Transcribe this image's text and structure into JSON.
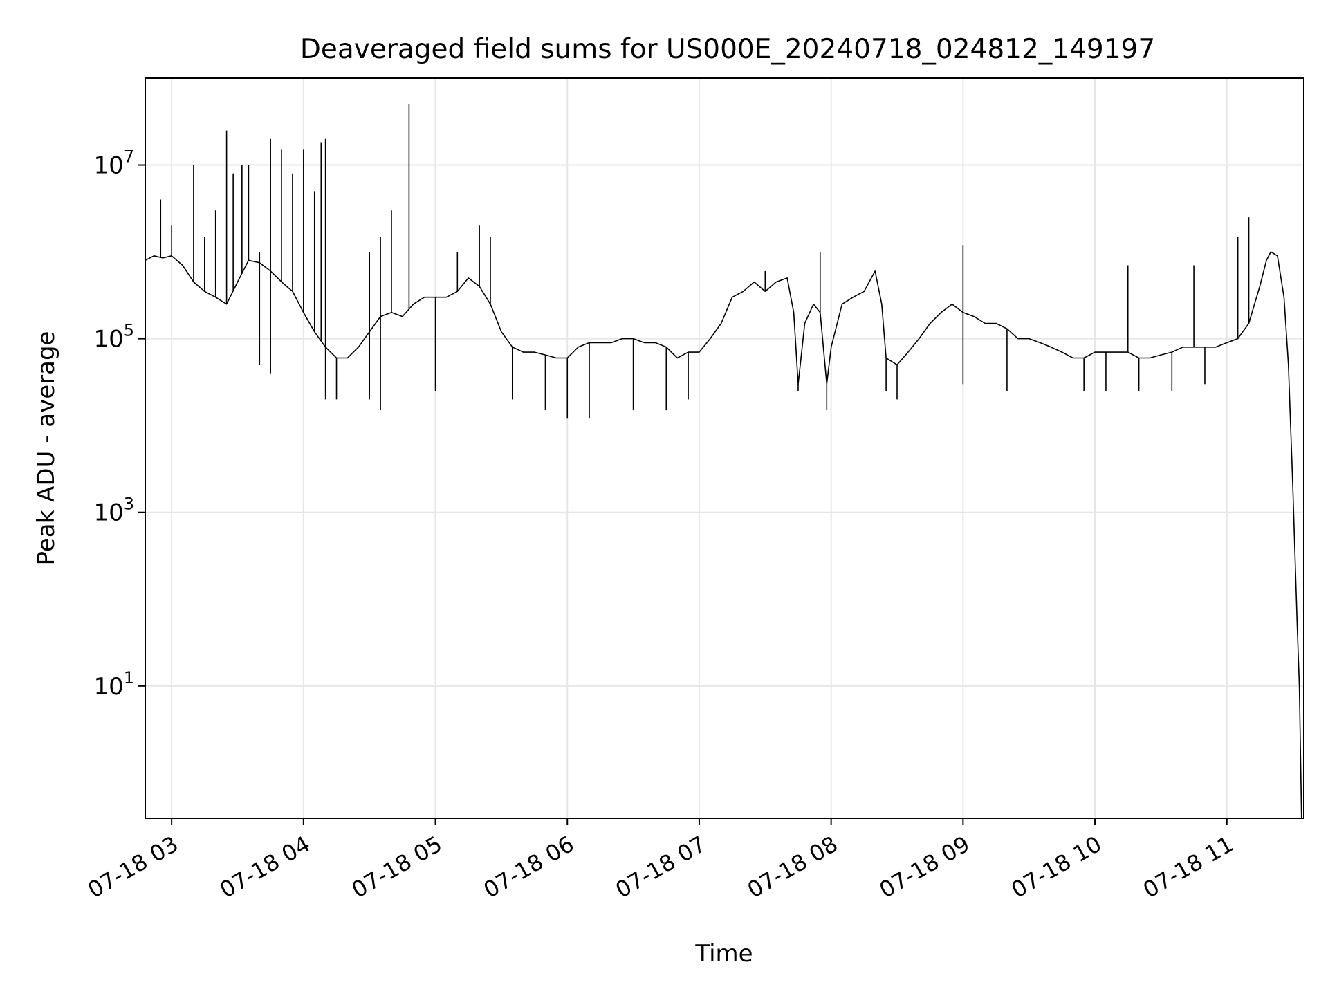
{
  "chart_data": {
    "type": "line",
    "title": "Deaveraged field sums for US000E_20240718_024812_149197",
    "xlabel": "Time",
    "ylabel": "Peak ADU - average",
    "x_scale": "time",
    "y_scale": "log",
    "xlim": [
      "07-18 02:48",
      "07-18 11:35"
    ],
    "ylim": [
      0.3,
      100000000
    ],
    "grid": true,
    "line_color": "#000000",
    "grid_color": "#e6e6e6",
    "x_ticks": [
      {
        "label": "07-18 03",
        "value": "07-18 03:00"
      },
      {
        "label": "07-18 04",
        "value": "07-18 04:00"
      },
      {
        "label": "07-18 05",
        "value": "07-18 05:00"
      },
      {
        "label": "07-18 06",
        "value": "07-18 06:00"
      },
      {
        "label": "07-18 07",
        "value": "07-18 07:00"
      },
      {
        "label": "07-18 08",
        "value": "07-18 08:00"
      },
      {
        "label": "07-18 09",
        "value": "07-18 09:00"
      },
      {
        "label": "07-18 10",
        "value": "07-18 10:00"
      },
      {
        "label": "07-18 11",
        "value": "07-18 11:00"
      }
    ],
    "y_ticks": [
      {
        "base": "10",
        "exp": "1",
        "value": 10
      },
      {
        "base": "10",
        "exp": "3",
        "value": 1000
      },
      {
        "base": "10",
        "exp": "5",
        "value": 100000
      },
      {
        "base": "10",
        "exp": "7",
        "value": 10000000
      }
    ],
    "series": [
      {
        "points": [
          [
            "07-18 02:48",
            800000
          ],
          [
            "07-18 02:52",
            900000
          ],
          [
            "07-18 02:56",
            850000
          ],
          [
            "07-18 03:00",
            900000
          ],
          [
            "07-18 03:05",
            700000
          ],
          [
            "07-18 03:10",
            450000
          ],
          [
            "07-18 03:15",
            350000
          ],
          [
            "07-18 03:20",
            300000
          ],
          [
            "07-18 03:25",
            250000
          ],
          [
            "07-18 03:30",
            450000
          ],
          [
            "07-18 03:35",
            800000
          ],
          [
            "07-18 03:40",
            750000
          ],
          [
            "07-18 03:45",
            600000
          ],
          [
            "07-18 03:50",
            450000
          ],
          [
            "07-18 03:55",
            350000
          ],
          [
            "07-18 04:00",
            200000
          ],
          [
            "07-18 04:05",
            120000
          ],
          [
            "07-18 04:10",
            80000
          ],
          [
            "07-18 04:15",
            60000
          ],
          [
            "07-18 04:20",
            60000
          ],
          [
            "07-18 04:25",
            80000
          ],
          [
            "07-18 04:30",
            120000
          ],
          [
            "07-18 04:35",
            180000
          ],
          [
            "07-18 04:40",
            200000
          ],
          [
            "07-18 04:45",
            180000
          ],
          [
            "07-18 04:50",
            250000
          ],
          [
            "07-18 04:55",
            300000
          ],
          [
            "07-18 05:00",
            300000
          ],
          [
            "07-18 05:05",
            300000
          ],
          [
            "07-18 05:10",
            350000
          ],
          [
            "07-18 05:15",
            500000
          ],
          [
            "07-18 05:20",
            400000
          ],
          [
            "07-18 05:25",
            250000
          ],
          [
            "07-18 05:30",
            120000
          ],
          [
            "07-18 05:35",
            80000
          ],
          [
            "07-18 05:40",
            70000
          ],
          [
            "07-18 05:45",
            70000
          ],
          [
            "07-18 05:50",
            65000
          ],
          [
            "07-18 05:55",
            60000
          ],
          [
            "07-18 06:00",
            60000
          ],
          [
            "07-18 06:05",
            80000
          ],
          [
            "07-18 06:10",
            90000
          ],
          [
            "07-18 06:15",
            90000
          ],
          [
            "07-18 06:20",
            90000
          ],
          [
            "07-18 06:25",
            100000
          ],
          [
            "07-18 06:30",
            100000
          ],
          [
            "07-18 06:35",
            90000
          ],
          [
            "07-18 06:40",
            90000
          ],
          [
            "07-18 06:45",
            80000
          ],
          [
            "07-18 06:50",
            60000
          ],
          [
            "07-18 06:55",
            70000
          ],
          [
            "07-18 07:00",
            70000
          ],
          [
            "07-18 07:05",
            100000
          ],
          [
            "07-18 07:10",
            150000
          ],
          [
            "07-18 07:15",
            300000
          ],
          [
            "07-18 07:20",
            350000
          ],
          [
            "07-18 07:25",
            450000
          ],
          [
            "07-18 07:30",
            350000
          ],
          [
            "07-18 07:35",
            450000
          ],
          [
            "07-18 07:40",
            500000
          ],
          [
            "07-18 07:43",
            200000
          ],
          [
            "07-18 07:45",
            30000
          ],
          [
            "07-18 07:48",
            150000
          ],
          [
            "07-18 07:52",
            250000
          ],
          [
            "07-18 07:55",
            200000
          ],
          [
            "07-18 07:58",
            30000
          ],
          [
            "07-18 08:00",
            80000
          ],
          [
            "07-18 08:05",
            250000
          ],
          [
            "07-18 08:10",
            300000
          ],
          [
            "07-18 08:15",
            350000
          ],
          [
            "07-18 08:20",
            600000
          ],
          [
            "07-18 08:23",
            250000
          ],
          [
            "07-18 08:25",
            60000
          ],
          [
            "07-18 08:30",
            50000
          ],
          [
            "07-18 08:35",
            70000
          ],
          [
            "07-18 08:40",
            100000
          ],
          [
            "07-18 08:45",
            150000
          ],
          [
            "07-18 08:50",
            200000
          ],
          [
            "07-18 08:55",
            250000
          ],
          [
            "07-18 09:00",
            200000
          ],
          [
            "07-18 09:05",
            180000
          ],
          [
            "07-18 09:10",
            150000
          ],
          [
            "07-18 09:15",
            150000
          ],
          [
            "07-18 09:20",
            130000
          ],
          [
            "07-18 09:25",
            100000
          ],
          [
            "07-18 09:30",
            100000
          ],
          [
            "07-18 09:35",
            90000
          ],
          [
            "07-18 09:40",
            80000
          ],
          [
            "07-18 09:45",
            70000
          ],
          [
            "07-18 09:50",
            60000
          ],
          [
            "07-18 09:55",
            60000
          ],
          [
            "07-18 10:00",
            70000
          ],
          [
            "07-18 10:05",
            70000
          ],
          [
            "07-18 10:10",
            70000
          ],
          [
            "07-18 10:15",
            70000
          ],
          [
            "07-18 10:20",
            60000
          ],
          [
            "07-18 10:25",
            60000
          ],
          [
            "07-18 10:30",
            65000
          ],
          [
            "07-18 10:35",
            70000
          ],
          [
            "07-18 10:40",
            80000
          ],
          [
            "07-18 10:45",
            80000
          ],
          [
            "07-18 10:50",
            80000
          ],
          [
            "07-18 10:55",
            80000
          ],
          [
            "07-18 11:00",
            90000
          ],
          [
            "07-18 11:05",
            100000
          ],
          [
            "07-18 11:10",
            150000
          ],
          [
            "07-18 11:15",
            400000
          ],
          [
            "07-18 11:18",
            800000
          ],
          [
            "07-18 11:20",
            1000000
          ],
          [
            "07-18 11:23",
            900000
          ],
          [
            "07-18 11:26",
            300000
          ],
          [
            "07-18 11:28",
            50000
          ],
          [
            "07-18 11:30",
            2000
          ],
          [
            "07-18 11:32",
            50
          ],
          [
            "07-18 11:33",
            10
          ],
          [
            "07-18 11:34",
            0.3
          ]
        ],
        "spikes": [
          [
            "07-18 02:55",
            4000000
          ],
          [
            "07-18 03:00",
            2000000
          ],
          [
            "07-18 03:10",
            10000000
          ],
          [
            "07-18 03:15",
            1500000
          ],
          [
            "07-18 03:20",
            3000000
          ],
          [
            "07-18 03:25",
            25000000
          ],
          [
            "07-18 03:28",
            8000000
          ],
          [
            "07-18 03:32",
            10000000
          ],
          [
            "07-18 03:35",
            10000000
          ],
          [
            "07-18 03:40",
            1000000
          ],
          [
            "07-18 03:45",
            20000000
          ],
          [
            "07-18 03:50",
            15000000
          ],
          [
            "07-18 03:55",
            8000000
          ],
          [
            "07-18 04:00",
            15000000
          ],
          [
            "07-18 04:05",
            5000000
          ],
          [
            "07-18 04:08",
            18000000
          ],
          [
            "07-18 04:10",
            20000000
          ],
          [
            "07-18 04:30",
            1000000
          ],
          [
            "07-18 04:35",
            1500000
          ],
          [
            "07-18 04:40",
            3000000
          ],
          [
            "07-18 04:48",
            50000000
          ],
          [
            "07-18 05:10",
            1000000
          ],
          [
            "07-18 05:20",
            2000000
          ],
          [
            "07-18 05:25",
            1500000
          ],
          [
            "07-18 07:30",
            600000
          ],
          [
            "07-18 07:55",
            1000000
          ],
          [
            "07-18 09:00",
            1200000
          ],
          [
            "07-18 10:15",
            700000
          ],
          [
            "07-18 10:45",
            700000
          ],
          [
            "07-18 11:05",
            1500000
          ],
          [
            "07-18 11:10",
            2500000
          ]
        ],
        "dips": [
          [
            "07-18 03:40",
            50000
          ],
          [
            "07-18 03:45",
            40000
          ],
          [
            "07-18 04:10",
            20000
          ],
          [
            "07-18 04:15",
            20000
          ],
          [
            "07-18 04:30",
            20000
          ],
          [
            "07-18 04:35",
            15000
          ],
          [
            "07-18 05:00",
            25000
          ],
          [
            "07-18 05:35",
            20000
          ],
          [
            "07-18 05:50",
            15000
          ],
          [
            "07-18 06:00",
            12000
          ],
          [
            "07-18 06:10",
            12000
          ],
          [
            "07-18 06:30",
            15000
          ],
          [
            "07-18 06:45",
            15000
          ],
          [
            "07-18 06:55",
            20000
          ],
          [
            "07-18 07:45",
            25000
          ],
          [
            "07-18 07:58",
            15000
          ],
          [
            "07-18 08:25",
            25000
          ],
          [
            "07-18 08:30",
            20000
          ],
          [
            "07-18 09:00",
            30000
          ],
          [
            "07-18 09:20",
            25000
          ],
          [
            "07-18 09:55",
            25000
          ],
          [
            "07-18 10:05",
            25000
          ],
          [
            "07-18 10:20",
            25000
          ],
          [
            "07-18 10:35",
            25000
          ],
          [
            "07-18 10:50",
            30000
          ]
        ]
      }
    ]
  }
}
